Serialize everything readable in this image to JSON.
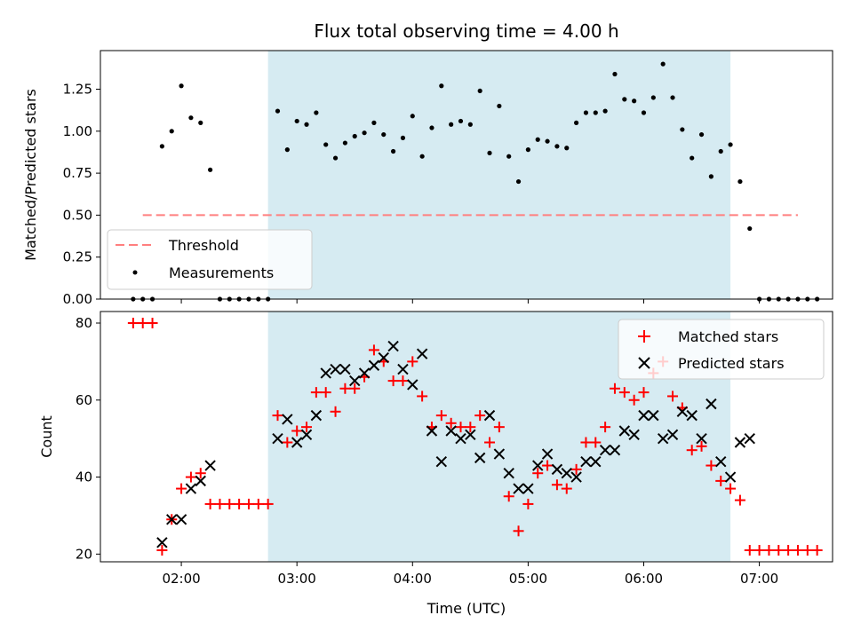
{
  "chart_data": [
    {
      "type": "scatter",
      "title": "Flux total observing time = 4.00 h",
      "xlabel": "",
      "ylabel": "Matched/Predicted stars",
      "xlim": [
        "01:18",
        "07:38"
      ],
      "ylim": [
        0,
        1.48
      ],
      "yticks": [
        "0.00",
        "0.25",
        "0.50",
        "0.75",
        "1.00",
        "1.25"
      ],
      "xticks": [
        "02:00",
        "03:00",
        "04:00",
        "05:00",
        "06:00",
        "07:00"
      ],
      "shaded_interval": {
        "start": "02:45",
        "end": "06:45",
        "color": "#add8e6"
      },
      "threshold": {
        "name": "Threshold",
        "value": 0.5,
        "x_start": "01:40",
        "x_end": "07:20",
        "color": "#ff7f7f",
        "style": "dashed"
      },
      "legend": {
        "position": "lower-left",
        "entries": [
          "Threshold",
          "Measurements"
        ]
      },
      "series": [
        {
          "name": "Measurements",
          "marker": "dot",
          "color": "#000000",
          "points": [
            [
              "01:35",
              0
            ],
            [
              "01:40",
              0
            ],
            [
              "01:45",
              0
            ],
            [
              "01:50",
              0.91
            ],
            [
              "01:55",
              1.0
            ],
            [
              "02:00",
              1.27
            ],
            [
              "02:05",
              1.08
            ],
            [
              "02:10",
              1.05
            ],
            [
              "02:15",
              0.77
            ],
            [
              "02:20",
              0
            ],
            [
              "02:25",
              0
            ],
            [
              "02:30",
              0
            ],
            [
              "02:35",
              0
            ],
            [
              "02:40",
              0
            ],
            [
              "02:45",
              0
            ],
            [
              "02:50",
              1.12
            ],
            [
              "02:55",
              0.89
            ],
            [
              "03:00",
              1.06
            ],
            [
              "03:05",
              1.04
            ],
            [
              "03:10",
              1.11
            ],
            [
              "03:15",
              0.92
            ],
            [
              "03:20",
              0.84
            ],
            [
              "03:25",
              0.93
            ],
            [
              "03:30",
              0.97
            ],
            [
              "03:35",
              0.99
            ],
            [
              "03:40",
              1.05
            ],
            [
              "03:45",
              0.98
            ],
            [
              "03:50",
              0.88
            ],
            [
              "03:55",
              0.96
            ],
            [
              "04:00",
              1.09
            ],
            [
              "04:05",
              0.85
            ],
            [
              "04:10",
              1.02
            ],
            [
              "04:15",
              1.27
            ],
            [
              "04:20",
              1.04
            ],
            [
              "04:25",
              1.06
            ],
            [
              "04:30",
              1.04
            ],
            [
              "04:35",
              1.24
            ],
            [
              "04:40",
              0.87
            ],
            [
              "04:45",
              1.15
            ],
            [
              "04:50",
              0.85
            ],
            [
              "04:55",
              0.7
            ],
            [
              "05:00",
              0.89
            ],
            [
              "05:05",
              0.95
            ],
            [
              "05:10",
              0.94
            ],
            [
              "05:15",
              0.91
            ],
            [
              "05:20",
              0.9
            ],
            [
              "05:25",
              1.05
            ],
            [
              "05:30",
              1.11
            ],
            [
              "05:35",
              1.11
            ],
            [
              "05:40",
              1.12
            ],
            [
              "05:45",
              1.34
            ],
            [
              "05:50",
              1.19
            ],
            [
              "05:55",
              1.18
            ],
            [
              "06:00",
              1.11
            ],
            [
              "06:05",
              1.2
            ],
            [
              "06:10",
              1.4
            ],
            [
              "06:15",
              1.2
            ],
            [
              "06:20",
              1.01
            ],
            [
              "06:25",
              0.84
            ],
            [
              "06:30",
              0.98
            ],
            [
              "06:35",
              0.73
            ],
            [
              "06:40",
              0.88
            ],
            [
              "06:45",
              0.92
            ],
            [
              "06:50",
              0.7
            ],
            [
              "06:55",
              0.42
            ],
            [
              "07:00",
              0
            ],
            [
              "07:05",
              0
            ],
            [
              "07:10",
              0
            ],
            [
              "07:15",
              0
            ],
            [
              "07:20",
              0
            ],
            [
              "07:25",
              0
            ],
            [
              "07:30",
              0
            ]
          ]
        }
      ]
    },
    {
      "type": "scatter",
      "title": "",
      "xlabel": "Time (UTC)",
      "ylabel": "Count",
      "xlim": [
        "01:18",
        "07:38"
      ],
      "ylim": [
        18,
        83
      ],
      "yticks": [
        "20",
        "40",
        "60",
        "80"
      ],
      "xticks": [
        "02:00",
        "03:00",
        "04:00",
        "05:00",
        "06:00",
        "07:00"
      ],
      "shaded_interval": {
        "start": "02:45",
        "end": "06:45",
        "color": "#add8e6"
      },
      "legend": {
        "position": "top-right",
        "entries": [
          "Matched stars",
          "Predicted stars"
        ]
      },
      "series": [
        {
          "name": "Matched stars",
          "marker": "plus",
          "color": "#ff0000",
          "points": [
            [
              "01:35",
              80
            ],
            [
              "01:40",
              80
            ],
            [
              "01:45",
              80
            ],
            [
              "01:50",
              21
            ],
            [
              "01:55",
              29
            ],
            [
              "02:00",
              37
            ],
            [
              "02:05",
              40
            ],
            [
              "02:10",
              41
            ],
            [
              "02:15",
              33
            ],
            [
              "02:20",
              33
            ],
            [
              "02:25",
              33
            ],
            [
              "02:30",
              33
            ],
            [
              "02:35",
              33
            ],
            [
              "02:40",
              33
            ],
            [
              "02:45",
              33
            ],
            [
              "02:50",
              56
            ],
            [
              "02:55",
              49
            ],
            [
              "03:00",
              52
            ],
            [
              "03:05",
              53
            ],
            [
              "03:10",
              62
            ],
            [
              "03:15",
              62
            ],
            [
              "03:20",
              57
            ],
            [
              "03:25",
              63
            ],
            [
              "03:30",
              63
            ],
            [
              "03:35",
              66
            ],
            [
              "03:40",
              73
            ],
            [
              "03:45",
              70
            ],
            [
              "03:50",
              65
            ],
            [
              "03:55",
              65
            ],
            [
              "04:00",
              70
            ],
            [
              "04:05",
              61
            ],
            [
              "04:10",
              53
            ],
            [
              "04:15",
              56
            ],
            [
              "04:20",
              54
            ],
            [
              "04:25",
              53
            ],
            [
              "04:30",
              53
            ],
            [
              "04:35",
              56
            ],
            [
              "04:40",
              49
            ],
            [
              "04:45",
              53
            ],
            [
              "04:50",
              35
            ],
            [
              "04:55",
              26
            ],
            [
              "05:00",
              33
            ],
            [
              "05:05",
              41
            ],
            [
              "05:10",
              43
            ],
            [
              "05:15",
              38
            ],
            [
              "05:20",
              37
            ],
            [
              "05:25",
              42
            ],
            [
              "05:30",
              49
            ],
            [
              "05:35",
              49
            ],
            [
              "05:40",
              53
            ],
            [
              "05:45",
              63
            ],
            [
              "05:50",
              62
            ],
            [
              "05:55",
              60
            ],
            [
              "06:00",
              62
            ],
            [
              "06:05",
              67
            ],
            [
              "06:10",
              70
            ],
            [
              "06:15",
              61
            ],
            [
              "06:20",
              58
            ],
            [
              "06:25",
              47
            ],
            [
              "06:30",
              48
            ],
            [
              "06:35",
              43
            ],
            [
              "06:40",
              39
            ],
            [
              "06:45",
              37
            ],
            [
              "06:50",
              34
            ],
            [
              "06:55",
              21
            ],
            [
              "07:00",
              21
            ],
            [
              "07:05",
              21
            ],
            [
              "07:10",
              21
            ],
            [
              "07:15",
              21
            ],
            [
              "07:20",
              21
            ],
            [
              "07:25",
              21
            ],
            [
              "07:30",
              21
            ]
          ]
        },
        {
          "name": "Predicted stars",
          "marker": "x",
          "color": "#000000",
          "points": [
            [
              "01:50",
              23
            ],
            [
              "01:55",
              29
            ],
            [
              "02:00",
              29
            ],
            [
              "02:05",
              37
            ],
            [
              "02:10",
              39
            ],
            [
              "02:15",
              43
            ],
            [
              "02:50",
              50
            ],
            [
              "02:55",
              55
            ],
            [
              "03:00",
              49
            ],
            [
              "03:05",
              51
            ],
            [
              "03:10",
              56
            ],
            [
              "03:15",
              67
            ],
            [
              "03:20",
              68
            ],
            [
              "03:25",
              68
            ],
            [
              "03:30",
              65
            ],
            [
              "03:35",
              67
            ],
            [
              "03:40",
              69
            ],
            [
              "03:45",
              71
            ],
            [
              "03:50",
              74
            ],
            [
              "03:55",
              68
            ],
            [
              "04:00",
              64
            ],
            [
              "04:05",
              72
            ],
            [
              "04:10",
              52
            ],
            [
              "04:15",
              44
            ],
            [
              "04:20",
              52
            ],
            [
              "04:25",
              50
            ],
            [
              "04:30",
              51
            ],
            [
              "04:35",
              45
            ],
            [
              "04:40",
              56
            ],
            [
              "04:45",
              46
            ],
            [
              "04:50",
              41
            ],
            [
              "04:55",
              37
            ],
            [
              "05:00",
              37
            ],
            [
              "05:05",
              43
            ],
            [
              "05:10",
              46
            ],
            [
              "05:15",
              42
            ],
            [
              "05:20",
              41
            ],
            [
              "05:25",
              40
            ],
            [
              "05:30",
              44
            ],
            [
              "05:35",
              44
            ],
            [
              "05:40",
              47
            ],
            [
              "05:45",
              47
            ],
            [
              "05:50",
              52
            ],
            [
              "05:55",
              51
            ],
            [
              "06:00",
              56
            ],
            [
              "06:05",
              56
            ],
            [
              "06:10",
              50
            ],
            [
              "06:15",
              51
            ],
            [
              "06:20",
              57
            ],
            [
              "06:25",
              56
            ],
            [
              "06:30",
              50
            ],
            [
              "06:35",
              59
            ],
            [
              "06:40",
              44
            ],
            [
              "06:45",
              40
            ],
            [
              "06:50",
              49
            ],
            [
              "06:55",
              50
            ]
          ]
        }
      ]
    }
  ]
}
